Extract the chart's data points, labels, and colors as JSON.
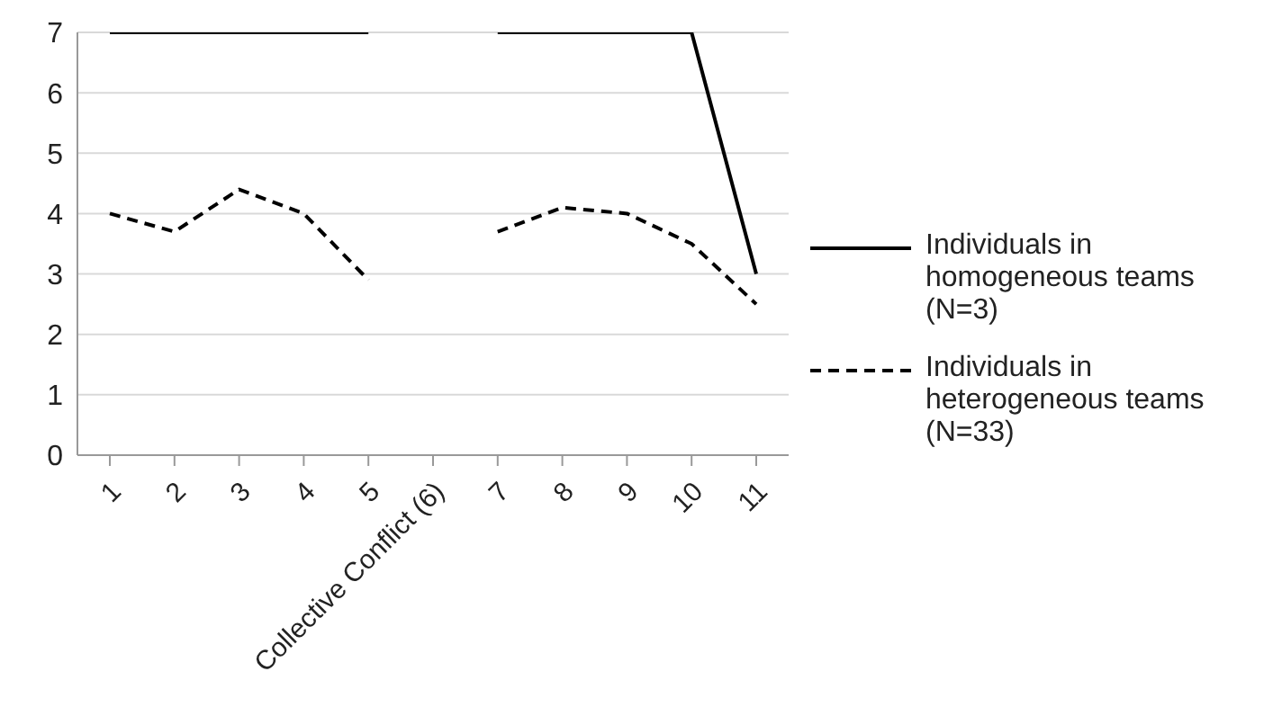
{
  "chart_data": {
    "type": "line",
    "categories": [
      "1",
      "2",
      "3",
      "4",
      "5",
      "Collective Conflict (6)",
      "7",
      "8",
      "9",
      "10",
      "11"
    ],
    "series": [
      {
        "name": "Individuals in homogeneous teams (N=3)",
        "color": "#000000",
        "line_style": "solid",
        "values": [
          7,
          7,
          7,
          7,
          7,
          null,
          7,
          7,
          7,
          7,
          3
        ]
      },
      {
        "name": "Individuals in heterogeneous teams (N=33)",
        "color": "#000000",
        "line_style": "dashed",
        "values": [
          4.0,
          3.7,
          4.4,
          4.0,
          2.9,
          null,
          3.7,
          4.1,
          4.0,
          3.5,
          2.5
        ]
      }
    ],
    "ylim": [
      0,
      7
    ],
    "yticks": [
      0,
      1,
      2,
      3,
      4,
      5,
      6,
      7
    ],
    "grid": "y",
    "legend": "right",
    "marker": "none"
  }
}
